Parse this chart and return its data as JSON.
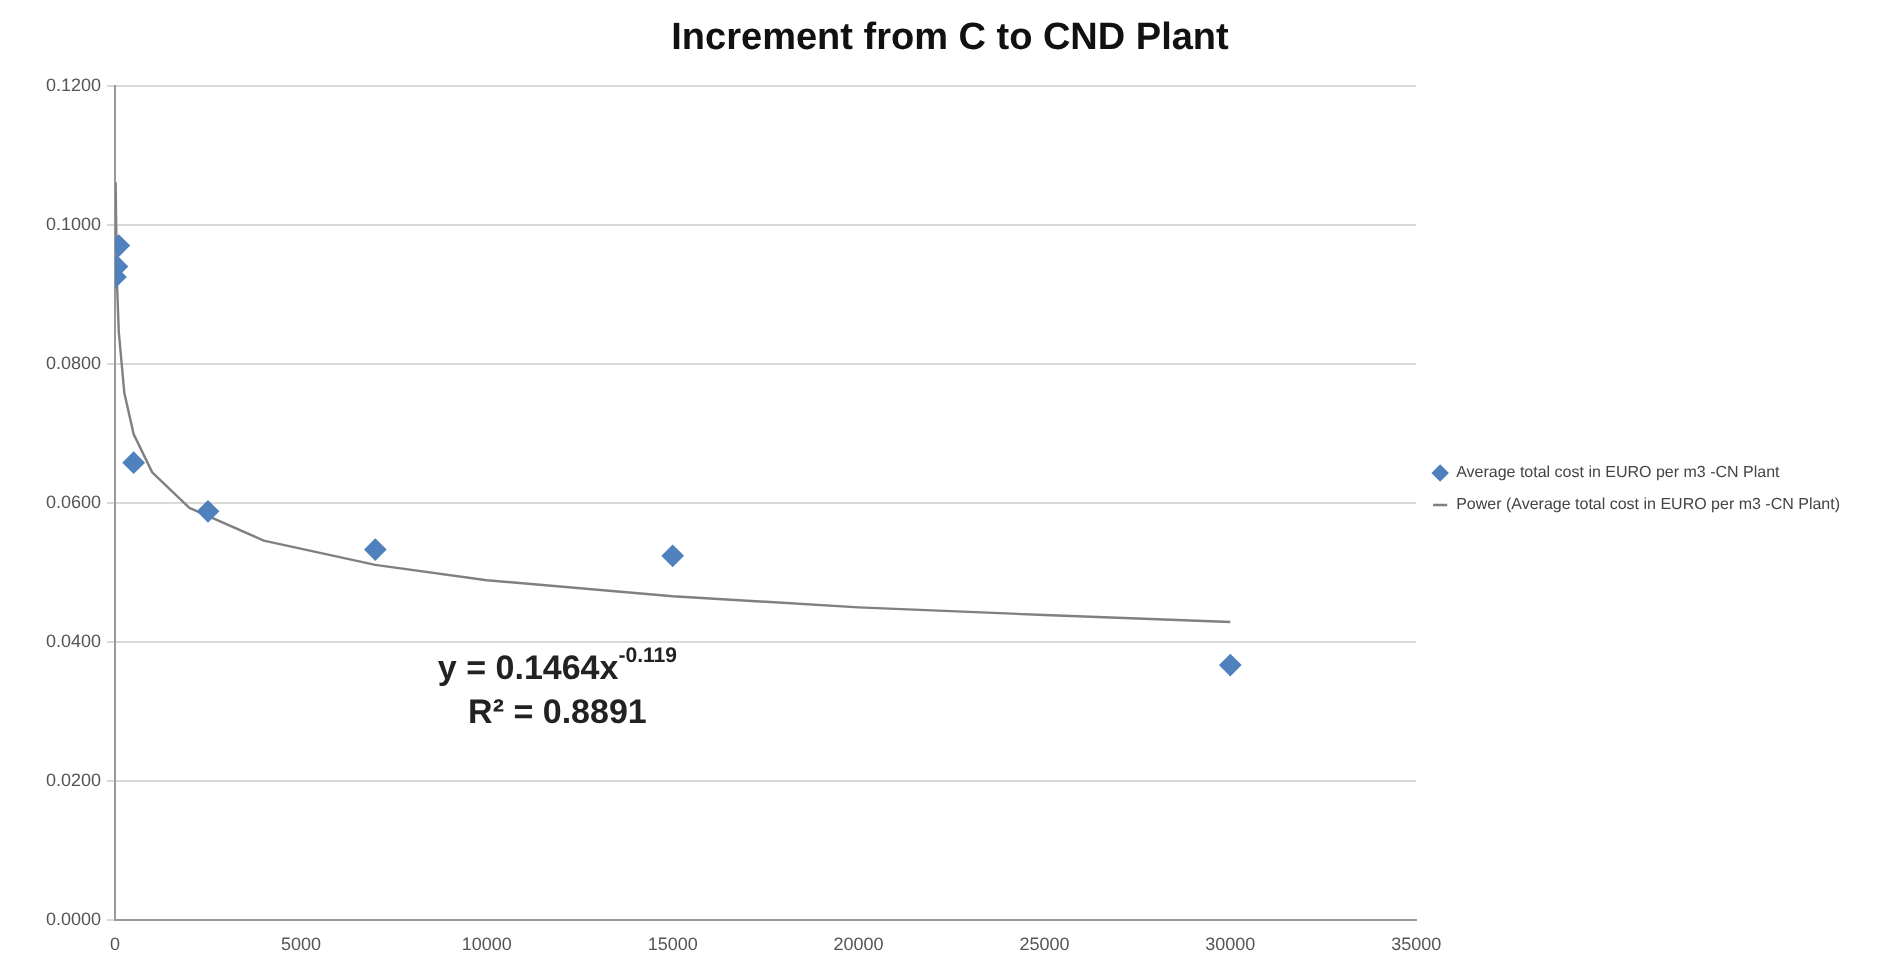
{
  "chart_data": {
    "type": "scatter",
    "title": "Increment from C to CND Plant",
    "xlim": [
      0,
      35000
    ],
    "xticks": [
      0,
      5000,
      10000,
      15000,
      20000,
      25000,
      30000,
      35000
    ],
    "ylim": [
      0,
      0.12
    ],
    "yticks": [
      {
        "value": 0,
        "label": "0.0000"
      },
      {
        "value": 0.02,
        "label": "0.0200"
      },
      {
        "value": 0.04,
        "label": "0.0400"
      },
      {
        "value": 0.06,
        "label": "0.0600"
      },
      {
        "value": 0.08,
        "label": "0.0800"
      },
      {
        "value": 0.1,
        "label": "0.1000"
      },
      {
        "value": 0.12,
        "label": "0.1200"
      }
    ],
    "grid": "y",
    "legend": "right",
    "series": [
      {
        "name": "Average total cost in EURO per m3 -CN Plant",
        "type": "scatter",
        "color": "#4f81bd",
        "marker": "diamond",
        "x": [
          10,
          50,
          100,
          500,
          2500,
          7000,
          15000,
          30000
        ],
        "values": [
          0.0925,
          0.094,
          0.097,
          0.0658,
          0.0588,
          0.0533,
          0.0524,
          0.0367
        ]
      },
      {
        "name": "Power (Average total cost in EURO per m3 -CN Plant)",
        "type": "line",
        "color": "#808080",
        "marker": "none",
        "x": [
          15,
          50,
          100,
          250,
          500,
          1000,
          2000,
          4000,
          7000,
          10000,
          15000,
          20000,
          25000,
          30000
        ],
        "values": [
          0.1061,
          0.0919,
          0.0846,
          0.0758,
          0.0699,
          0.0644,
          0.0593,
          0.0546,
          0.0511,
          0.0489,
          0.0466,
          0.045,
          0.0439,
          0.0429
        ]
      }
    ],
    "annotations": [
      "y = 0.1464x$^{-0.119}$",
      "R² = 0.8891"
    ]
  }
}
